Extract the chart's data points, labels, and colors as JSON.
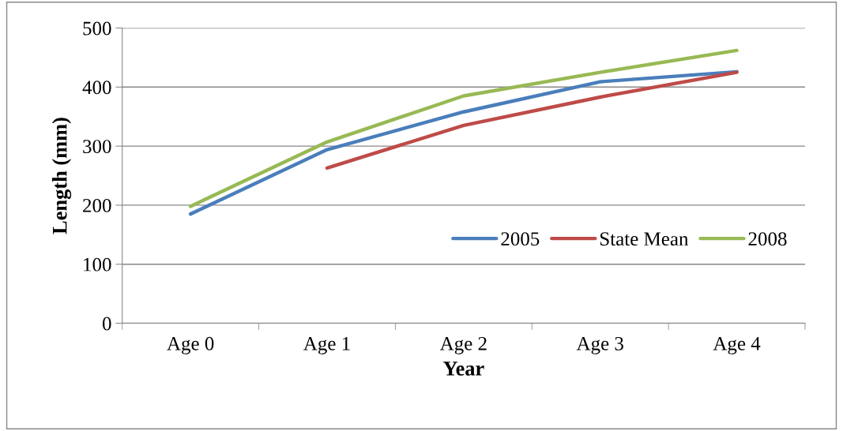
{
  "chart_data": {
    "type": "line",
    "xlabel": "Year",
    "ylabel": "Length (mm)",
    "categories": [
      "Age 0",
      "Age 1",
      "Age 2",
      "Age 3",
      "Age 4"
    ],
    "series": [
      {
        "name": "2005",
        "color": "#4a7ebb",
        "values": [
          185,
          294,
          358,
          409,
          426
        ]
      },
      {
        "name": "State Mean",
        "color": "#be4b48",
        "values": [
          null,
          263,
          335,
          383,
          425
        ]
      },
      {
        "name": "2008",
        "color": "#98b954",
        "values": [
          198,
          307,
          385,
          425,
          462
        ]
      }
    ],
    "ylim": [
      0,
      500
    ],
    "yticks": [
      0,
      100,
      200,
      300,
      400,
      500
    ],
    "grid": "y",
    "legend": "right",
    "marker": "none",
    "line_style": "solid"
  }
}
